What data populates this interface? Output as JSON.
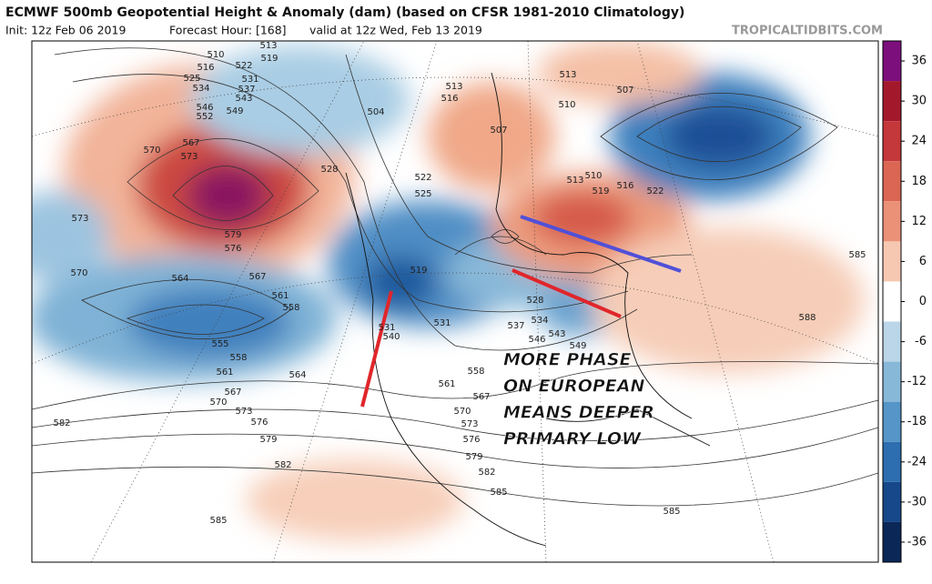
{
  "header": {
    "title": "ECMWF 500mb Geopotential Height & Anomaly (dam) (based on CFSR 1981-2010 Climatology)",
    "init": "Init: 12z Feb 06 2019",
    "forecast_hour": "Forecast Hour: [168]",
    "valid": "valid at 12z Wed, Feb 13 2019",
    "source": "TROPICALTIDBITS.COM"
  },
  "annotation": [
    "MORE PHASE",
    "ON EUROPEAN",
    "MEANS DEEPER",
    "PRIMARY LOW"
  ],
  "colorbar": {
    "lim": [
      -39,
      39
    ],
    "ticks": [
      36,
      30,
      24,
      18,
      12,
      6,
      0,
      -6,
      -12,
      -18,
      -24,
      -30,
      -36
    ],
    "colors": [
      "#7d0f7d",
      "#a3192b",
      "#c4373a",
      "#da6653",
      "#ea9177",
      "#f6c8b2",
      "#ffffff",
      "#bad6e8",
      "#88b8d8",
      "#5595c7",
      "#2c6eaf",
      "#174889",
      "#0b2757"
    ]
  },
  "contour_labels": [
    510,
    513,
    519,
    516,
    522,
    525,
    531,
    534,
    537,
    543,
    546,
    549,
    552,
    570,
    567,
    573,
    579,
    576,
    573,
    570,
    564,
    567,
    561,
    558,
    555,
    558,
    561,
    564,
    567,
    570,
    573,
    576,
    579,
    582,
    582,
    585,
    528,
    525,
    522,
    519,
    513,
    516,
    504,
    507,
    510,
    513,
    507,
    510,
    513,
    519,
    516,
    522,
    531,
    540,
    531,
    528,
    534,
    537,
    543,
    546,
    549,
    558,
    561,
    567,
    570,
    573,
    576,
    579,
    582,
    585,
    585,
    585,
    588
  ]
}
